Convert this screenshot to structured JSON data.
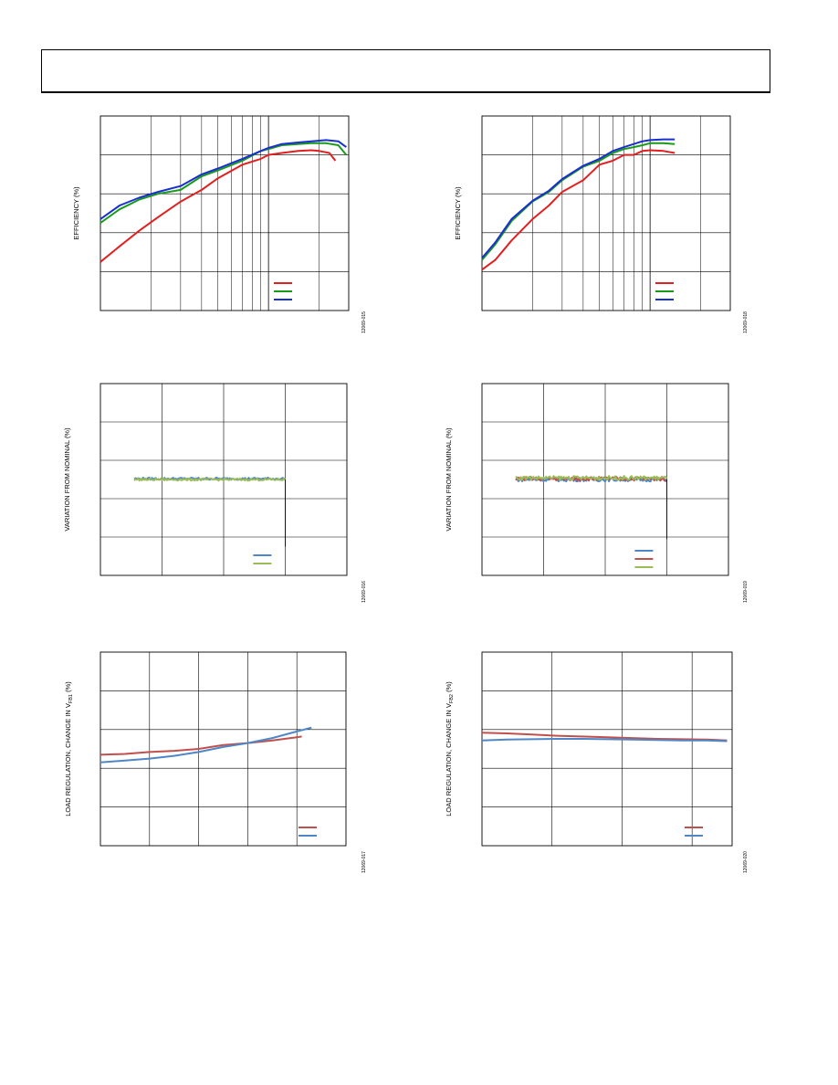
{
  "page": {
    "header": ""
  },
  "chart_data": [
    {
      "id": "eff-left",
      "type": "line",
      "title": "",
      "xlabel": "",
      "ylabel": "EFFICIENCY (%)",
      "xscale": "log",
      "grid": true,
      "legend_position": "bottom-right",
      "figure_id": "12069-015",
      "xlim": [
        0.1,
        3
      ],
      "ylim": [
        0,
        5
      ],
      "series": [
        {
          "name": "",
          "color": "#e02020",
          "x": [
            0.1,
            0.13,
            0.17,
            0.22,
            0.3,
            0.4,
            0.5,
            0.7,
            0.9,
            1.0,
            1.2,
            1.5,
            1.8,
            2.0,
            2.3,
            2.5
          ],
          "y": [
            1.25,
            1.65,
            2.05,
            2.4,
            2.8,
            3.1,
            3.4,
            3.75,
            3.9,
            4.0,
            4.05,
            4.1,
            4.12,
            4.1,
            4.05,
            3.85
          ]
        },
        {
          "name": "",
          "color": "#1a9a1a",
          "x": [
            0.1,
            0.13,
            0.17,
            0.22,
            0.3,
            0.4,
            0.5,
            0.7,
            0.9,
            1.0,
            1.2,
            1.5,
            1.8,
            2.2,
            2.6,
            2.9
          ],
          "y": [
            2.25,
            2.6,
            2.85,
            3.0,
            3.1,
            3.45,
            3.6,
            3.85,
            4.1,
            4.15,
            4.25,
            4.28,
            4.3,
            4.3,
            4.25,
            4.0
          ]
        },
        {
          "name": "",
          "color": "#1a2fd0",
          "x": [
            0.1,
            0.13,
            0.17,
            0.22,
            0.3,
            0.4,
            0.5,
            0.7,
            0.9,
            1.0,
            1.2,
            1.5,
            1.8,
            2.2,
            2.6,
            2.9
          ],
          "y": [
            2.35,
            2.7,
            2.9,
            3.05,
            3.2,
            3.5,
            3.65,
            3.9,
            4.1,
            4.18,
            4.28,
            4.32,
            4.35,
            4.38,
            4.35,
            4.2
          ]
        }
      ]
    },
    {
      "id": "eff-right",
      "type": "line",
      "title": "",
      "xlabel": "",
      "ylabel": "EFFICIENCY (%)",
      "xscale": "log",
      "grid": true,
      "legend_position": "bottom-right",
      "figure_id": "12069-018",
      "xlim": [
        0.1,
        3
      ],
      "ylim": [
        0,
        5
      ],
      "series": [
        {
          "name": "",
          "color": "#e02020",
          "x": [
            0.1,
            0.12,
            0.15,
            0.2,
            0.25,
            0.3,
            0.4,
            0.5,
            0.6,
            0.7,
            0.8,
            0.9,
            1.0,
            1.2,
            1.4
          ],
          "y": [
            1.05,
            1.3,
            1.8,
            2.35,
            2.7,
            3.05,
            3.35,
            3.75,
            3.85,
            4.0,
            4.0,
            4.1,
            4.12,
            4.1,
            4.05
          ]
        },
        {
          "name": "",
          "color": "#1a9a1a",
          "x": [
            0.1,
            0.12,
            0.15,
            0.2,
            0.25,
            0.3,
            0.4,
            0.5,
            0.6,
            0.7,
            0.8,
            0.9,
            1.0,
            1.2,
            1.4
          ],
          "y": [
            1.3,
            1.7,
            2.3,
            2.8,
            3.05,
            3.35,
            3.7,
            3.85,
            4.05,
            4.15,
            4.2,
            4.25,
            4.3,
            4.3,
            4.28
          ]
        },
        {
          "name": "",
          "color": "#1a2fd0",
          "x": [
            0.1,
            0.12,
            0.15,
            0.2,
            0.25,
            0.3,
            0.4,
            0.5,
            0.6,
            0.7,
            0.8,
            0.9,
            1.0,
            1.2,
            1.4
          ],
          "y": [
            1.35,
            1.75,
            2.35,
            2.82,
            3.08,
            3.38,
            3.72,
            3.9,
            4.1,
            4.2,
            4.28,
            4.35,
            4.38,
            4.4,
            4.4
          ]
        }
      ]
    },
    {
      "id": "var-left",
      "type": "scatter",
      "title": "",
      "xlabel": "",
      "ylabel": "VARIATION FROM NOMINAL (%)",
      "grid": true,
      "legend_position": "bottom-center",
      "figure_id": "12069-016",
      "xlim": [
        0,
        4
      ],
      "ylim": [
        0,
        5
      ],
      "series": [
        {
          "name": "",
          "color": "#4f86c6",
          "x0": 0.55,
          "x1": 3.0,
          "y": 2.52,
          "noise": 0.03
        },
        {
          "name": "",
          "color": "#9bbb59",
          "x0": 0.55,
          "x1": 3.0,
          "y": 2.5,
          "noise": 0.03
        }
      ]
    },
    {
      "id": "var-right",
      "type": "scatter",
      "title": "",
      "xlabel": "",
      "ylabel": "VARIATION FROM NOMINAL (%)",
      "grid": true,
      "legend_position": "bottom-center",
      "figure_id": "12069-019",
      "xlim": [
        0,
        4
      ],
      "ylim": [
        0,
        5
      ],
      "series": [
        {
          "name": "",
          "color": "#4f86c6",
          "x0": 0.55,
          "x1": 3.0,
          "y": 2.5,
          "noise": 0.05
        },
        {
          "name": "",
          "color": "#c0504d",
          "x0": 0.55,
          "x1": 3.0,
          "y": 2.52,
          "noise": 0.05
        },
        {
          "name": "",
          "color": "#9bbb59",
          "x0": 0.55,
          "x1": 3.0,
          "y": 2.54,
          "noise": 0.05
        }
      ]
    },
    {
      "id": "load-left",
      "type": "line",
      "title": "",
      "xlabel": "",
      "ylabel_main": "LOAD REGULATION, CHANGE IN V",
      "ylabel_sub": "FB1",
      "ylabel_end": " (%)",
      "grid": true,
      "legend_position": "bottom-right",
      "figure_id": "12069-017",
      "xlim": [
        0,
        5
      ],
      "ylim": [
        0,
        5
      ],
      "series": [
        {
          "name": "",
          "color": "#c0504d",
          "x": [
            0,
            0.5,
            1,
            1.5,
            2,
            2.5,
            3,
            3.5,
            4,
            4.1
          ],
          "y": [
            2.35,
            2.37,
            2.42,
            2.45,
            2.5,
            2.6,
            2.65,
            2.72,
            2.8,
            2.82
          ]
        },
        {
          "name": "",
          "color": "#4f86c6",
          "x": [
            0,
            0.5,
            1,
            1.5,
            2,
            2.5,
            3,
            3.5,
            4,
            4.3
          ],
          "y": [
            2.15,
            2.2,
            2.25,
            2.32,
            2.42,
            2.55,
            2.65,
            2.78,
            2.95,
            3.05
          ]
        }
      ]
    },
    {
      "id": "load-right",
      "type": "line",
      "title": "",
      "xlabel": "",
      "ylabel_main": "LOAD REGULATION, CHANGE IN V",
      "ylabel_sub": "FB2",
      "ylabel_end": " (%)",
      "grid": true,
      "legend_position": "bottom-right",
      "figure_id": "12069-020",
      "xlim": [
        0,
        5
      ],
      "ylim": [
        0,
        5
      ],
      "xgrid": [
        1.4,
        2.8,
        4.2
      ],
      "series": [
        {
          "name": "",
          "color": "#c0504d",
          "x": [
            0,
            0.5,
            1,
            1.5,
            2,
            2.5,
            3,
            3.5,
            4,
            4.5,
            4.9
          ],
          "y": [
            2.92,
            2.9,
            2.87,
            2.84,
            2.82,
            2.8,
            2.78,
            2.76,
            2.75,
            2.74,
            2.72
          ]
        },
        {
          "name": "",
          "color": "#4f86c6",
          "x": [
            0,
            0.5,
            1,
            1.5,
            2,
            2.5,
            3,
            3.5,
            4,
            4.5,
            4.9
          ],
          "y": [
            2.72,
            2.74,
            2.75,
            2.76,
            2.76,
            2.75,
            2.74,
            2.73,
            2.72,
            2.72,
            2.7
          ]
        }
      ]
    }
  ]
}
